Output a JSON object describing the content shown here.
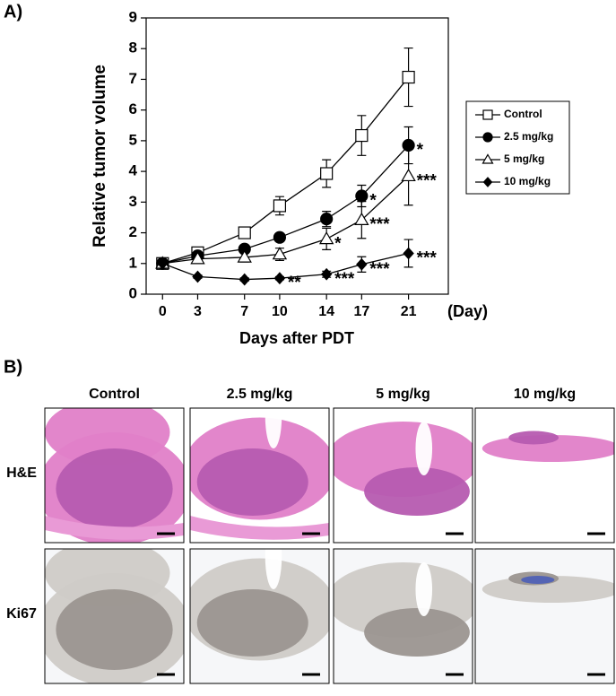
{
  "chart_data": {
    "type": "line",
    "panel_label": "A)",
    "y_label": "Relative tumor volume",
    "x_label": "Days after PDT",
    "x_unit": "(Day)",
    "x": [
      0,
      3,
      7,
      10,
      14,
      17,
      21
    ],
    "xlim": [
      -1.4,
      24.4
    ],
    "xticks": [
      0,
      3,
      7,
      10,
      14,
      17,
      21
    ],
    "ylim": [
      0,
      9
    ],
    "yticks": [
      0,
      1,
      2,
      3,
      4,
      5,
      6,
      7,
      8,
      9
    ],
    "series": [
      {
        "name": "Control",
        "color": "#000000",
        "marker": "square-open",
        "values": [
          1,
          1.35,
          2.0,
          2.88,
          3.93,
          5.17,
          7.07
        ],
        "errors": [
          0,
          0.1,
          0.1,
          0.3,
          0.45,
          0.65,
          0.95
        ],
        "significance": [
          null,
          null,
          null,
          null,
          null,
          null,
          null
        ]
      },
      {
        "name": "2.5 mg/kg",
        "color": "#000000",
        "marker": "circle-filled",
        "values": [
          1,
          1.25,
          1.47,
          1.85,
          2.45,
          3.2,
          4.85
        ],
        "errors": [
          0,
          0.08,
          0.1,
          0.1,
          0.25,
          0.35,
          0.6
        ],
        "significance": [
          null,
          null,
          null,
          null,
          null,
          "*",
          "*"
        ]
      },
      {
        "name": "5 mg/kg",
        "color": "#000000",
        "marker": "triangle-open",
        "values": [
          1,
          1.15,
          1.2,
          1.3,
          1.8,
          2.42,
          3.85
        ],
        "errors": [
          0,
          0.08,
          0.15,
          0.2,
          0.35,
          0.6,
          0.95
        ],
        "significance": [
          null,
          null,
          null,
          null,
          "*",
          "***",
          "***"
        ]
      },
      {
        "name": "10 mg/kg",
        "color": "#000000",
        "marker": "diamond-filled",
        "values": [
          1,
          0.57,
          0.48,
          0.52,
          0.65,
          0.97,
          1.33
        ],
        "errors": [
          0,
          0.05,
          0.05,
          0.05,
          0.1,
          0.25,
          0.45
        ],
        "significance": [
          null,
          null,
          null,
          "**",
          "***",
          "***",
          "***"
        ]
      }
    ]
  },
  "histology": {
    "label": "B)",
    "columns": [
      "Control",
      "2.5 mg/kg",
      "5 mg/kg",
      "10 mg/kg"
    ],
    "rows": [
      "H&E",
      "Ki67"
    ]
  }
}
